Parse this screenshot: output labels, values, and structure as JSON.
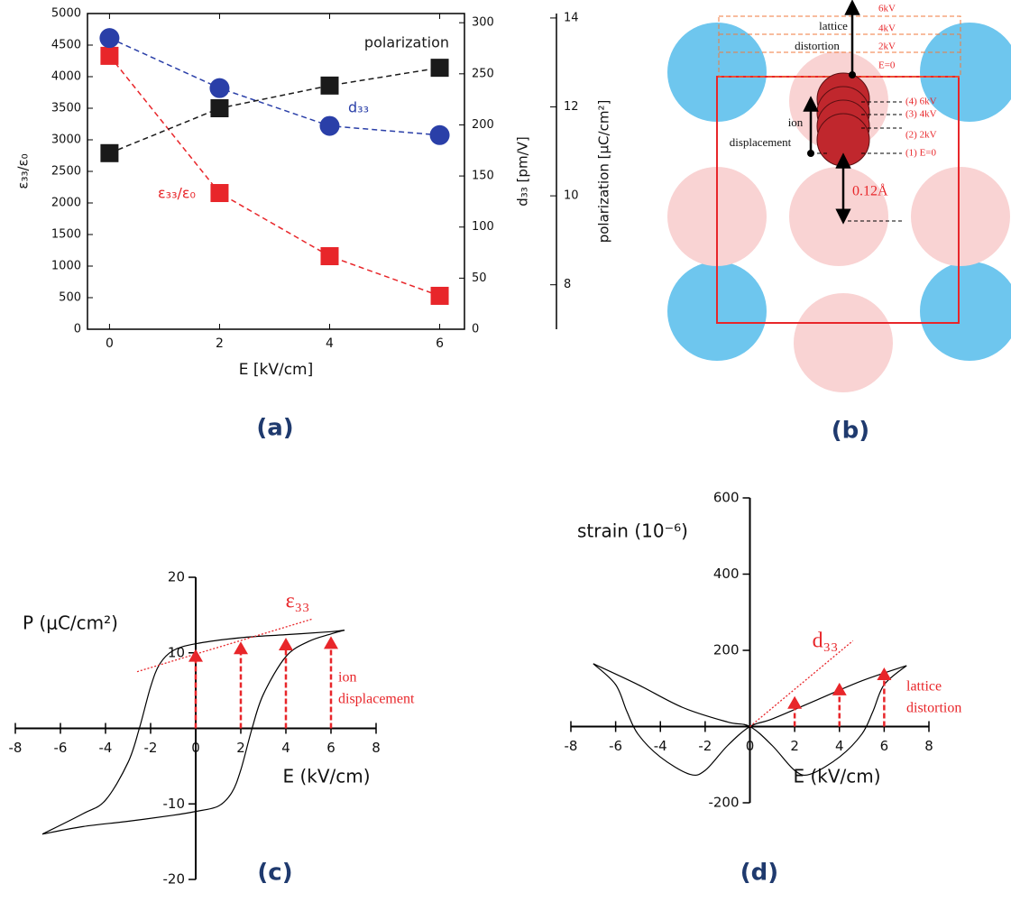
{
  "chart_data": [
    {
      "type": "line",
      "label": "(a)",
      "xlabel": "E [kV/cm]",
      "x": [
        0,
        2,
        4,
        6
      ],
      "xlim": [
        -0.4,
        6.45
      ],
      "xticks": [
        0,
        2,
        4,
        6
      ],
      "ylabel": "ε₃₃/ε₀",
      "ylim": [
        0,
        5000
      ],
      "yticks": [
        0,
        500,
        1000,
        1500,
        2000,
        2500,
        3000,
        3500,
        4000,
        4500,
        5000
      ],
      "y2label": "d₃₃ [pm/V]",
      "y2lim": [
        0,
        309
      ],
      "y2ticks": [
        0,
        50,
        100,
        150,
        200,
        250,
        300
      ],
      "y3label": "polarization [μC/cm²]",
      "y3lim": [
        7,
        14.1
      ],
      "y3ticks": [
        8,
        10,
        12,
        14
      ],
      "series": [
        {
          "name": "ε₃₃/ε₀",
          "color": "#e8262a",
          "marker": "square",
          "values": [
            4330,
            2157,
            1157,
            529
          ]
        },
        {
          "name": "d₃₃",
          "axis": "y2",
          "color": "#2a3fa8",
          "marker": "circle",
          "values": [
            285,
            236,
            199,
            190
          ]
        },
        {
          "name": "polarization",
          "axis": "y3",
          "color": "#1a1a1a",
          "marker": "square",
          "values": [
            10.96,
            11.97,
            12.48,
            12.88
          ]
        }
      ]
    },
    {
      "type": "hysteresis",
      "label": "(c)",
      "xlabel": "E (kV/cm)",
      "ylabel": "P (μC/cm²)",
      "xlim": [
        -8,
        8
      ],
      "xticks": [
        -8,
        -6,
        -4,
        -2,
        0,
        2,
        4,
        6,
        8
      ],
      "ylim": [
        -20,
        20
      ],
      "yticks": [
        -20,
        -10,
        10,
        20
      ],
      "series": [
        {
          "color": "#000000",
          "x": [
            6.6,
            6,
            4,
            2,
            0,
            -1,
            -1.6,
            -2,
            -2.5,
            -3,
            -4,
            -5,
            -6.8
          ],
          "y": [
            13,
            12.8,
            12.4,
            12,
            11.2,
            10.3,
            8.5,
            5.5,
            0,
            -4.5,
            -9.5,
            -11.3,
            -14
          ]
        },
        {
          "color": "#000000",
          "x": [
            -6.8,
            -5,
            -3,
            -1,
            0,
            1,
            1.6,
            2,
            2.5,
            3,
            4,
            5,
            6,
            6.6
          ],
          "y": [
            -14,
            -13,
            -12.3,
            -11.5,
            -11,
            -10.3,
            -8.5,
            -5.5,
            0,
            4.5,
            9.5,
            11.5,
            12.5,
            13
          ]
        }
      ],
      "tangent": {
        "label": "ε₃₃",
        "color": "#e8262a",
        "x": [
          -2.6,
          5.2
        ],
        "y": [
          7.5,
          14.5
        ]
      },
      "arrows": {
        "color": "#e8262a",
        "x": [
          0,
          2,
          4,
          6
        ],
        "values": [
          10.5,
          11.5,
          12,
          12.2
        ]
      },
      "annotation": [
        "ion",
        "displacement"
      ]
    },
    {
      "type": "hysteresis",
      "label": "(d)",
      "xlabel": "E (kV/cm)",
      "ylabel": "strain (10⁻⁶)",
      "xlim": [
        -8,
        8
      ],
      "xticks": [
        -8,
        -6,
        -4,
        -2,
        0,
        2,
        4,
        6,
        8
      ],
      "ylim": [
        -200,
        600
      ],
      "yticks": [
        -200,
        200,
        400,
        600
      ],
      "series": [
        {
          "color": "#000000",
          "x": [
            -7,
            -5,
            -3,
            -1,
            0,
            1,
            2,
            2.7,
            4,
            5,
            5.5,
            6,
            7
          ],
          "y": [
            165,
            110,
            50,
            12,
            0,
            -50,
            -115,
            -125,
            -80,
            -20,
            40,
            110,
            160
          ]
        },
        {
          "color": "#000000",
          "x": [
            7,
            5,
            3,
            1,
            0,
            -1,
            -2,
            -2.7,
            -4,
            -5,
            -5.5,
            -6,
            -7
          ],
          "y": [
            160,
            120,
            70,
            20,
            0,
            -50,
            -115,
            -125,
            -80,
            -20,
            40,
            110,
            165
          ]
        }
      ],
      "tangent": {
        "label": "d₃₃",
        "color": "#e8262a",
        "x": [
          0,
          4.6
        ],
        "y": [
          0,
          225
        ]
      },
      "arrows": {
        "color": "#e8262a",
        "x": [
          2,
          4,
          6
        ],
        "values": [
          80,
          115,
          155
        ]
      },
      "annotation": [
        "lattice",
        "distortion"
      ]
    }
  ],
  "diagram": {
    "label": "(b)",
    "lattice_labels": [
      "lattice",
      "distortion"
    ],
    "field_levels": [
      "6kV",
      "4kV",
      "2kV",
      "E=0"
    ],
    "ion_labels": [
      "ion",
      "displacement"
    ],
    "ion_levels": [
      "(4)  6kV",
      "(3)  4kV",
      "(2)  2kV",
      "(1)  E=0"
    ],
    "shift": "0.12Å"
  }
}
